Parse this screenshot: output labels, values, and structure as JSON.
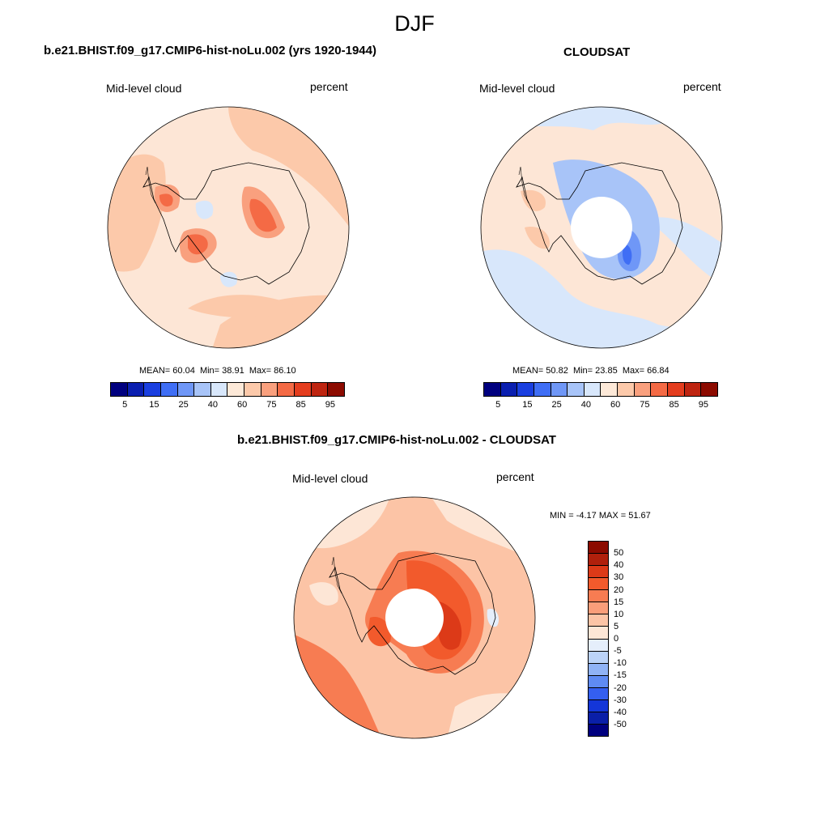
{
  "figure": {
    "title": "DJF"
  },
  "panel_model": {
    "title": "b.e21.BHIST.f09_g17.CMIP6-hist-noLu.002 (yrs 1920-1944)",
    "variable": "Mid-level cloud",
    "units": "percent",
    "mean_label": "MEAN=",
    "mean": "60.04",
    "min_label": "Min=",
    "min": "38.91",
    "max_label": "Max=",
    "max": "86.10"
  },
  "panel_obs": {
    "title": "CLOUDSAT",
    "variable": "Mid-level cloud",
    "units": "percent",
    "mean_label": "MEAN=",
    "mean": "50.82",
    "min_label": "Min=",
    "min": "23.85",
    "max_label": "Max=",
    "max": "66.84"
  },
  "panel_diff": {
    "title": "b.e21.BHIST.f09_g17.CMIP6-hist-noLu.002 - CLOUDSAT",
    "variable": "Mid-level cloud",
    "units": "percent",
    "minmax": "MIN =  -4.17 MAX =  51.67"
  },
  "colorbar_abs": {
    "ticks": [
      "5",
      "15",
      "25",
      "40",
      "60",
      "75",
      "85",
      "95"
    ],
    "colors": [
      "#00007f",
      "#0a1fb0",
      "#1a3fe0",
      "#3f6ef5",
      "#6f97f7",
      "#a8c4f8",
      "#d8e7fb",
      "#fde9d8",
      "#fcc9aa",
      "#f9a07e",
      "#f46a45",
      "#e43d1e",
      "#be2410",
      "#8c0b00"
    ]
  },
  "colorbar_diff": {
    "ticks": [
      "50",
      "40",
      "30",
      "20",
      "15",
      "10",
      "5",
      "0",
      "-5",
      "-10",
      "-15",
      "-20",
      "-30",
      "-40",
      "-50"
    ],
    "colors": [
      "#8c0b00",
      "#b0200c",
      "#dc3a18",
      "#f25a2c",
      "#f77c52",
      "#fa9e7a",
      "#fcc4a6",
      "#fde6d6",
      "#e5eefb",
      "#bcd3f8",
      "#90b3f6",
      "#5f8bf3",
      "#345ff0",
      "#1436d8",
      "#0a1fa8",
      "#00007f"
    ]
  },
  "chart_data": [
    {
      "type": "heatmap",
      "title": "b.e21.BHIST.f09_g17.CMIP6-hist-noLu.002 (yrs 1920-1944)",
      "projection": "south polar stereographic",
      "variable": "Mid-level cloud",
      "units": "percent",
      "mean": 60.04,
      "min": 38.91,
      "max": 86.1,
      "levels": [
        5,
        10,
        15,
        20,
        25,
        30,
        40,
        50,
        60,
        70,
        75,
        80,
        85,
        90,
        95
      ]
    },
    {
      "type": "heatmap",
      "title": "CLOUDSAT",
      "projection": "south polar stereographic",
      "variable": "Mid-level cloud",
      "units": "percent",
      "mean": 50.82,
      "min": 23.85,
      "max": 66.84,
      "levels": [
        5,
        10,
        15,
        20,
        25,
        30,
        40,
        50,
        60,
        70,
        75,
        80,
        85,
        90,
        95
      ]
    },
    {
      "type": "heatmap",
      "title": "b.e21.BHIST.f09_g17.CMIP6-hist-noLu.002 - CLOUDSAT",
      "projection": "south polar stereographic",
      "variable": "Mid-level cloud",
      "units": "percent",
      "min": -4.17,
      "max": 51.67,
      "levels": [
        -50,
        -40,
        -30,
        -20,
        -15,
        -10,
        -5,
        0,
        5,
        10,
        15,
        20,
        30,
        40,
        50
      ]
    }
  ]
}
